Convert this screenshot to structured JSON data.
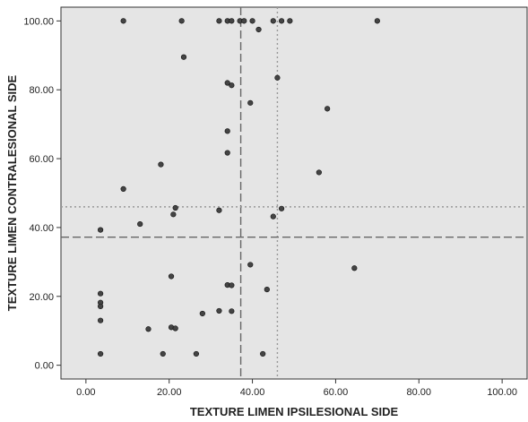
{
  "chart_data": {
    "type": "scatter",
    "title": "",
    "xlabel": "TEXTURE LIMEN IPSILESIONAL SIDE",
    "ylabel": "TEXTURE LIMEN CONTRALESIONAL SIDE",
    "xlim": [
      -6,
      106
    ],
    "ylim": [
      -4,
      104
    ],
    "x_ticks": [
      0,
      20,
      40,
      60,
      80,
      100
    ],
    "y_ticks": [
      0,
      20,
      40,
      60,
      80,
      100
    ],
    "x_tick_labels": [
      "0.00",
      "20.00",
      "40.00",
      "60.00",
      "80.00",
      "100.00"
    ],
    "y_tick_labels": [
      "0.00",
      "20.00",
      "40.00",
      "60.00",
      "80.00",
      "100.00"
    ],
    "grid": false,
    "legend": "none",
    "colors": {
      "plot_background": "#e5e5e5",
      "point_fill": "#444444",
      "point_stroke": "#111111",
      "reference_dashed": "#666666",
      "reference_dotted": "#999999",
      "axis": "#333333"
    },
    "reference_lines": [
      {
        "axis": "x",
        "value": 37.2,
        "style": "dashed"
      },
      {
        "axis": "x",
        "value": 46.0,
        "style": "dotted"
      },
      {
        "axis": "y",
        "value": 37.2,
        "style": "dashed"
      },
      {
        "axis": "y",
        "value": 46.0,
        "style": "dotted"
      }
    ],
    "points": [
      [
        9,
        100
      ],
      [
        23,
        100
      ],
      [
        32,
        100
      ],
      [
        34,
        100
      ],
      [
        35,
        100
      ],
      [
        37,
        100
      ],
      [
        38,
        100
      ],
      [
        40,
        100
      ],
      [
        45,
        100
      ],
      [
        47,
        100
      ],
      [
        49,
        100
      ],
      [
        70,
        100
      ],
      [
        41.5,
        97.5
      ],
      [
        23.5,
        89.5
      ],
      [
        46,
        83.5
      ],
      [
        34,
        82
      ],
      [
        35,
        81.3
      ],
      [
        39.5,
        76.2
      ],
      [
        58,
        74.5
      ],
      [
        34,
        68
      ],
      [
        34,
        61.7
      ],
      [
        18,
        58.3
      ],
      [
        56,
        56
      ],
      [
        9,
        51.2
      ],
      [
        47,
        45.5
      ],
      [
        21.5,
        45.7
      ],
      [
        32,
        45
      ],
      [
        21,
        43.8
      ],
      [
        45,
        43.2
      ],
      [
        13,
        41
      ],
      [
        3.5,
        39.3
      ],
      [
        39.5,
        29.2
      ],
      [
        64.5,
        28.2
      ],
      [
        20.5,
        25.8
      ],
      [
        34,
        23.3
      ],
      [
        35,
        23.2
      ],
      [
        43.5,
        22
      ],
      [
        3.5,
        20.8
      ],
      [
        3.5,
        18.2
      ],
      [
        3.5,
        17.1
      ],
      [
        32,
        15.8
      ],
      [
        35,
        15.7
      ],
      [
        28,
        15
      ],
      [
        3.5,
        13
      ],
      [
        20.5,
        11
      ],
      [
        21.5,
        10.7
      ],
      [
        15,
        10.5
      ],
      [
        3.5,
        3.3
      ],
      [
        18.5,
        3.3
      ],
      [
        26.5,
        3.3
      ],
      [
        42.5,
        3.3
      ]
    ]
  }
}
